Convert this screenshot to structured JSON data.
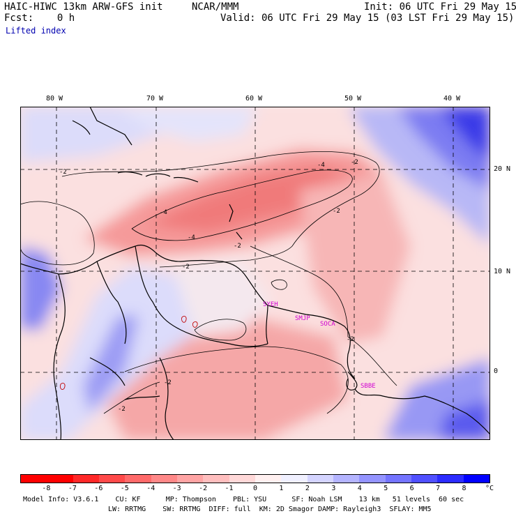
{
  "header": {
    "model_line": "HAIC-HIWC 13km ARW-GFS init",
    "org": "NCAR/MMM",
    "init": "Init: 06 UTC Fri 29 May 15",
    "fcst": "Fcst:    0 h",
    "valid": "Valid: 06 UTC Fri 29 May 15 (03 LST Fri 29 May 15)",
    "field": "Lifted index"
  },
  "map": {
    "lon_labels": [
      "80 W",
      "70 W",
      "60 W",
      "50 W",
      "40 W"
    ],
    "lat_labels": [
      "20 N",
      "10 N",
      "0"
    ],
    "contour_labels": [
      "-2",
      "-4",
      "-4",
      "-4",
      "-2",
      "-2",
      "-2",
      "-2",
      "-2",
      "-2",
      "-2"
    ],
    "stations": [
      "SYEH",
      "SMJP",
      "SOCA",
      "SBBE"
    ]
  },
  "colorbar": {
    "unit": "°C",
    "ticks": [
      "-8",
      "-7",
      "-6",
      "-5",
      "-4",
      "-3",
      "-2",
      "-1",
      "0",
      "1",
      "2",
      "3",
      "4",
      "5",
      "6",
      "7",
      "8"
    ],
    "colors": [
      "#ff0000",
      "#ff2828",
      "#ff4a4a",
      "#ff6a6a",
      "#ff8888",
      "#ffa4a4",
      "#ffbebe",
      "#ffd8d8",
      "#fff0f0",
      "#f0f0ff",
      "#d4d4ff",
      "#b4b4ff",
      "#9494ff",
      "#7474ff",
      "#5050ff",
      "#2c2cff",
      "#0000ff"
    ]
  },
  "footer": {
    "line1": "Model Info: V3.6.1    CU: KF      MP: Thompson    PBL: YSU      SF: Noah LSM    13 km   51 levels  60 sec",
    "line2": "LW: RRTMG    SW: RRTMG  DIFF: full  KM: 2D Smagor DAMP: Rayleigh3  SFLAY: MM5"
  }
}
